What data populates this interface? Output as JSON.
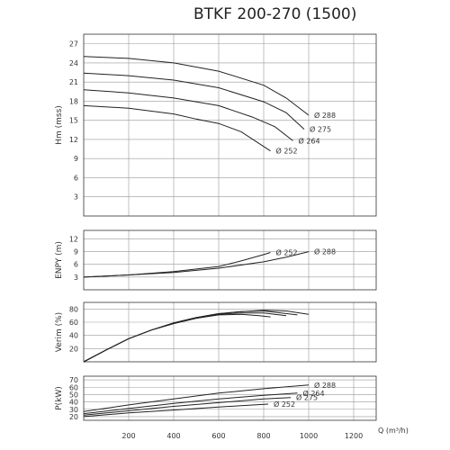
{
  "title": "BTKF 200-270 (1500)",
  "chart_data": {
    "type": "line",
    "title": "BTKF 200-270 (1500)",
    "xlabel": "Q (m³/h)",
    "xlim": [
      0,
      1300
    ],
    "xticks": [
      200,
      400,
      600,
      800,
      1000,
      1200
    ],
    "grid": true,
    "panels": [
      {
        "ylabel": "Hm (mss)",
        "ylim": [
          0,
          28.5
        ],
        "yticks": [
          3,
          6,
          9,
          12,
          15,
          18,
          21,
          24,
          27
        ],
        "series": [
          {
            "name": "Ø 288",
            "x": [
              0,
              200,
              400,
              600,
              800,
              900,
              1000
            ],
            "y": [
              25,
              24.7,
              24,
              22.7,
              20.5,
              18.5,
              15.8
            ]
          },
          {
            "name": "Ø 275",
            "x": [
              0,
              200,
              400,
              600,
              800,
              900,
              980
            ],
            "y": [
              22.4,
              22,
              21.3,
              20.1,
              17.9,
              16.2,
              13.6
            ]
          },
          {
            "name": "Ø 264",
            "x": [
              0,
              200,
              400,
              600,
              750,
              850,
              930
            ],
            "y": [
              19.8,
              19.3,
              18.5,
              17.3,
              15.5,
              14,
              11.8
            ]
          },
          {
            "name": "Ø 252",
            "x": [
              0,
              200,
              400,
              500,
              600,
              700,
              830
            ],
            "y": [
              17.3,
              16.9,
              16,
              15.2,
              14.5,
              13.2,
              10.2
            ]
          }
        ]
      },
      {
        "ylabel": "ENPY (m)",
        "ylim": [
          0,
          14
        ],
        "yticks": [
          3,
          6,
          9,
          12
        ],
        "series": [
          {
            "name": "Ø 252",
            "x": [
              0,
              200,
              400,
              600,
              700,
              800,
              830
            ],
            "y": [
              3,
              3.5,
              4.3,
              5.5,
              6.8,
              8.3,
              8.8
            ]
          },
          {
            "name": "Ø 288",
            "x": [
              0,
              200,
              400,
              600,
              800,
              900,
              1000
            ],
            "y": [
              3,
              3.5,
              4.1,
              5.1,
              6.6,
              7.7,
              9
            ]
          }
        ]
      },
      {
        "ylabel": "Verim (%)",
        "ylim": [
          0,
          90
        ],
        "yticks": [
          20,
          40,
          60,
          80
        ],
        "series": [
          {
            "name": "Ø 252",
            "x": [
              0,
              100,
              200,
              300,
              400,
              500,
              600,
              700,
              780,
              830
            ],
            "y": [
              0,
              18,
              35,
              48,
              58,
              66,
              71,
              72,
              70,
              68
            ]
          },
          {
            "name": "Ø 264",
            "x": [
              0,
              100,
              200,
              300,
              400,
              500,
              600,
              700,
              800,
              900
            ],
            "y": [
              0,
              18,
              35,
              48,
              58,
              66,
              72,
              74,
              74,
              70
            ]
          },
          {
            "name": "Ø 275",
            "x": [
              0,
              100,
              200,
              300,
              400,
              500,
              600,
              700,
              800,
              950
            ],
            "y": [
              0,
              18,
              35,
              48,
              59,
              67,
              73,
              76,
              77,
              71
            ]
          },
          {
            "name": "Ø 288",
            "x": [
              0,
              100,
              200,
              300,
              400,
              500,
              600,
              700,
              800,
              900,
              1000
            ],
            "y": [
              0,
              18,
              35,
              48,
              59,
              67,
              73,
              76,
              78,
              77,
              72
            ]
          }
        ]
      },
      {
        "ylabel": "P(kW)",
        "ylim": [
          15,
          75
        ],
        "yticks": [
          20,
          30,
          40,
          50,
          60,
          70
        ],
        "series": [
          {
            "name": "Ø 288",
            "x": [
              0,
              200,
              400,
              600,
              800,
              1000
            ],
            "y": [
              27,
              36,
              44,
              52,
              58,
              63
            ]
          },
          {
            "name": "Ø 264",
            "x": [
              0,
              200,
              400,
              600,
              800,
              950
            ],
            "y": [
              24,
              31,
              38,
              44,
              49,
              52
            ]
          },
          {
            "name": "Ø 275",
            "x": [
              0,
              200,
              400,
              600,
              800,
              920
            ],
            "y": [
              22,
              28,
              34,
              39,
              44,
              46
            ]
          },
          {
            "name": "Ø 252",
            "x": [
              0,
              200,
              400,
              600,
              700,
              820
            ],
            "y": [
              20,
              25,
              29,
              33,
              35,
              37
            ]
          }
        ]
      }
    ]
  }
}
